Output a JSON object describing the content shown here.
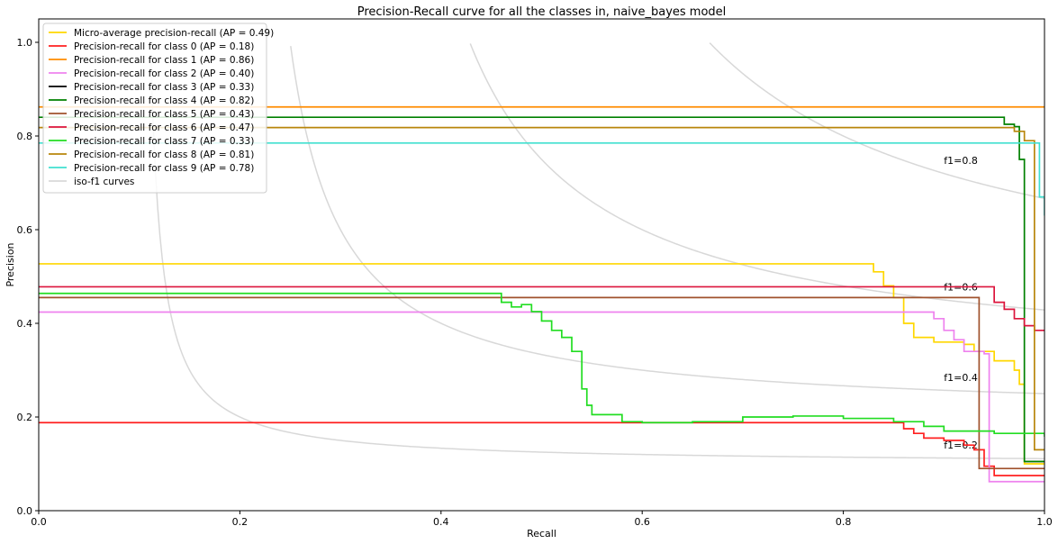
{
  "chart_data": {
    "type": "line",
    "title": "Precision-Recall curve for all the classes in, naive_bayes model",
    "xlabel": "Recall",
    "ylabel": "Precision",
    "xlim": [
      0,
      1
    ],
    "ylim": [
      0,
      1.05
    ],
    "xticks": [
      0,
      0.2,
      0.4,
      0.6,
      0.8,
      1.0
    ],
    "xtick_labels": [
      "0.0",
      "0.2",
      "0.4",
      "0.6",
      "0.8",
      "1.0"
    ],
    "yticks": [
      0,
      0.2,
      0.4,
      0.6,
      0.8,
      1.0
    ],
    "ytick_labels": [
      "0.0",
      "0.2",
      "0.4",
      "0.6",
      "0.8",
      "1.0"
    ],
    "grid": false,
    "legend_position": "top-left",
    "step": true,
    "series": [
      {
        "name": "Micro-average precision-recall (AP = 0.49)",
        "color": "#ffd700",
        "points": [
          [
            0,
            0.527
          ],
          [
            0.82,
            0.527
          ],
          [
            0.83,
            0.51
          ],
          [
            0.84,
            0.48
          ],
          [
            0.85,
            0.455
          ],
          [
            0.86,
            0.43
          ],
          [
            0.86,
            0.4
          ],
          [
            0.87,
            0.37
          ],
          [
            0.89,
            0.36
          ],
          [
            0.92,
            0.355
          ],
          [
            0.93,
            0.34
          ],
          [
            0.95,
            0.32
          ],
          [
            0.97,
            0.3
          ],
          [
            0.975,
            0.27
          ],
          [
            0.98,
            0.1
          ],
          [
            1.0,
            0.1
          ]
        ]
      },
      {
        "name": "Precision-recall for class 0 (AP = 0.18)",
        "color": "#ff2020",
        "points": [
          [
            0,
            0.188
          ],
          [
            0.85,
            0.188
          ],
          [
            0.86,
            0.175
          ],
          [
            0.87,
            0.165
          ],
          [
            0.88,
            0.155
          ],
          [
            0.9,
            0.15
          ],
          [
            0.92,
            0.14
          ],
          [
            0.93,
            0.13
          ],
          [
            0.94,
            0.095
          ],
          [
            0.95,
            0.075
          ],
          [
            1.0,
            0.075
          ]
        ]
      },
      {
        "name": "Precision-recall for class 1 (AP = 0.86)",
        "color": "#ff8c00",
        "points": [
          [
            0,
            0.862
          ],
          [
            1.0,
            0.862
          ]
        ]
      },
      {
        "name": "Precision-recall for class 2 (AP = 0.40)",
        "color": "#ee82ee",
        "points": [
          [
            0,
            0.424
          ],
          [
            0.88,
            0.424
          ],
          [
            0.89,
            0.41
          ],
          [
            0.9,
            0.385
          ],
          [
            0.91,
            0.365
          ],
          [
            0.92,
            0.34
          ],
          [
            0.94,
            0.335
          ],
          [
            0.945,
            0.062
          ],
          [
            1.0,
            0.062
          ]
        ]
      },
      {
        "name": "Precision-recall for class 3 (AP = 0.33)",
        "color": "#000000",
        "points": [
          [
            0.98,
            0.105
          ],
          [
            1.0,
            0.105
          ]
        ]
      },
      {
        "name": "Precision-recall for class 4 (AP = 0.82)",
        "color": "#008000",
        "points": [
          [
            0,
            0.84
          ],
          [
            0.955,
            0.84
          ],
          [
            0.96,
            0.825
          ],
          [
            0.97,
            0.82
          ],
          [
            0.975,
            0.75
          ],
          [
            0.98,
            0.105
          ],
          [
            1.0,
            0.105
          ]
        ]
      },
      {
        "name": "Precision-recall for class 5 (AP = 0.43)",
        "color": "#a0522d",
        "points": [
          [
            0,
            0.455
          ],
          [
            0.93,
            0.455
          ],
          [
            0.935,
            0.09
          ],
          [
            1.0,
            0.09
          ]
        ]
      },
      {
        "name": "Precision-recall for class 6 (AP = 0.47)",
        "color": "#dc143c",
        "points": [
          [
            0,
            0.478
          ],
          [
            0.945,
            0.478
          ],
          [
            0.95,
            0.445
          ],
          [
            0.96,
            0.43
          ],
          [
            0.97,
            0.41
          ],
          [
            0.98,
            0.395
          ],
          [
            0.99,
            0.385
          ],
          [
            1.0,
            0.385
          ]
        ]
      },
      {
        "name": "Precision-recall for class 7 (AP = 0.33)",
        "color": "#22dd22",
        "points": [
          [
            0,
            0.464
          ],
          [
            0.457,
            0.464
          ],
          [
            0.46,
            0.445
          ],
          [
            0.47,
            0.435
          ],
          [
            0.48,
            0.44
          ],
          [
            0.49,
            0.425
          ],
          [
            0.5,
            0.405
          ],
          [
            0.51,
            0.385
          ],
          [
            0.52,
            0.37
          ],
          [
            0.53,
            0.34
          ],
          [
            0.54,
            0.26
          ],
          [
            0.545,
            0.225
          ],
          [
            0.55,
            0.205
          ],
          [
            0.58,
            0.19
          ],
          [
            0.6,
            0.188
          ],
          [
            0.65,
            0.19
          ],
          [
            0.7,
            0.2
          ],
          [
            0.75,
            0.202
          ],
          [
            0.8,
            0.197
          ],
          [
            0.85,
            0.19
          ],
          [
            0.88,
            0.18
          ],
          [
            0.9,
            0.17
          ],
          [
            0.95,
            0.165
          ],
          [
            1.0,
            0.158
          ]
        ]
      },
      {
        "name": "Precision-recall for class 8 (AP = 0.81)",
        "color": "#b8860b",
        "points": [
          [
            0,
            0.818
          ],
          [
            0.965,
            0.818
          ],
          [
            0.97,
            0.81
          ],
          [
            0.98,
            0.79
          ],
          [
            0.99,
            0.13
          ],
          [
            1.0,
            0.13
          ]
        ]
      },
      {
        "name": "Precision-recall for class 9 (AP = 0.78)",
        "color": "#40e0d0",
        "points": [
          [
            0,
            0.785
          ],
          [
            0.99,
            0.785
          ],
          [
            0.995,
            0.67
          ],
          [
            1.0,
            0.63
          ]
        ]
      }
    ],
    "iso_f1": {
      "name": "iso-f1 curves",
      "color": "#d8d8d8",
      "values": [
        0.2,
        0.4,
        0.6,
        0.8
      ],
      "labels": [
        "f1=0.2",
        "f1=0.4",
        "f1=0.6",
        "f1=0.8"
      ]
    }
  }
}
